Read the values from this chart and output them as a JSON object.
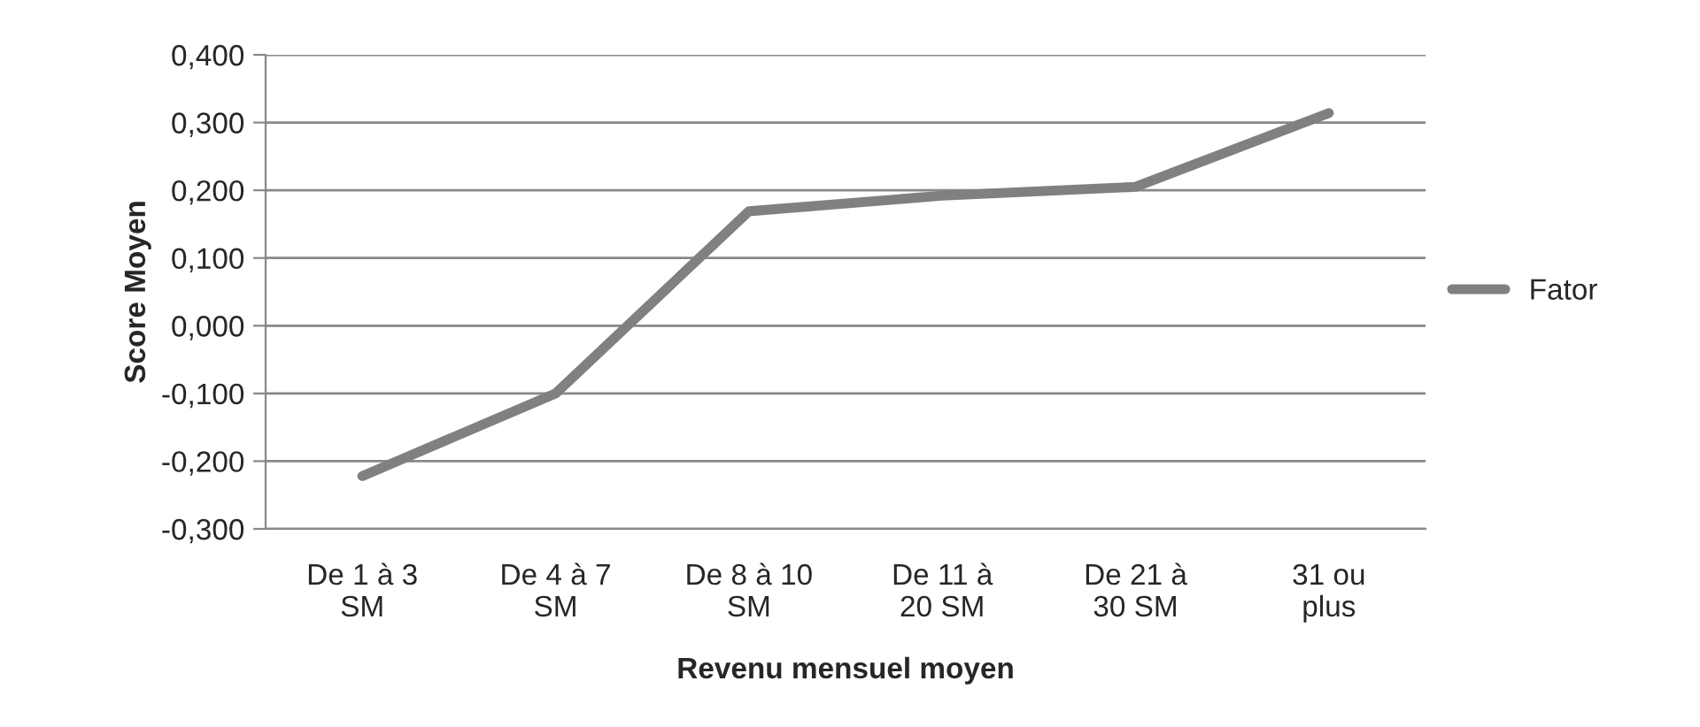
{
  "chart_data": {
    "type": "line",
    "xlabel": "Revenu mensuel moyen",
    "ylabel": "Score Moyen",
    "categories": [
      "De 1 à 3\nSM",
      "De 4 à 7\nSM",
      "De 8 à 10\nSM",
      "De 11 à\n20 SM",
      "De 21 à\n30 SM",
      "31 ou\nplus"
    ],
    "series": [
      {
        "name": "Fator",
        "color": "#808080",
        "values": [
          -0.222,
          -0.1,
          0.169,
          0.192,
          0.205,
          0.314
        ]
      }
    ],
    "ylim": [
      -0.3,
      0.4
    ],
    "yticks": [
      {
        "value": -0.3,
        "label": "-0,300"
      },
      {
        "value": -0.2,
        "label": "-0,200"
      },
      {
        "value": -0.1,
        "label": "-0,100"
      },
      {
        "value": 0,
        "label": "0,000"
      },
      {
        "value": 0.1,
        "label": "0,100"
      },
      {
        "value": 0.2,
        "label": "0,200"
      },
      {
        "value": 0.3,
        "label": "0,300"
      },
      {
        "value": 0.4,
        "label": "0,400"
      }
    ],
    "grid": "y",
    "legend": "right",
    "marker": "none",
    "line_style": "solid"
  }
}
